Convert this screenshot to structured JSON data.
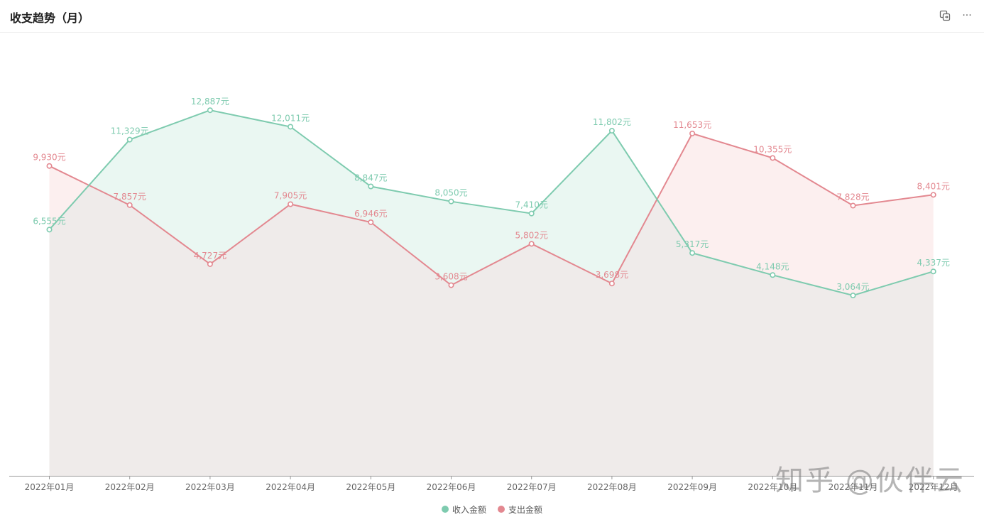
{
  "header": {
    "title": "收支趋势（月）",
    "more_label": "···"
  },
  "watermark": "知乎 @伙伴云",
  "colors": {
    "income": "#7ecbaf",
    "expense": "#e38890",
    "income_fill": "#eaf7f2",
    "expense_fill": "#fcefef",
    "overlap_fill": "#efebea",
    "axis": "#999999",
    "tick_text": "#666666"
  },
  "chart_data": {
    "type": "area",
    "x": [
      "2022年01月",
      "2022年02月",
      "2022年03月",
      "2022年04月",
      "2022年05月",
      "2022年06月",
      "2022年07月",
      "2022年08月",
      "2022年09月",
      "2022年10月",
      "2022年11月",
      "2022年12月"
    ],
    "series": [
      {
        "name": "收入金额",
        "values": [
          6555,
          11329,
          12887,
          12011,
          8847,
          8050,
          7410,
          11802,
          5317,
          4148,
          3064,
          4337
        ]
      },
      {
        "name": "支出金额",
        "values": [
          9930,
          7857,
          4727,
          7905,
          6946,
          3608,
          5802,
          3698,
          11653,
          10355,
          7828,
          8401
        ]
      }
    ],
    "value_suffix": "元",
    "ylim": [
      -6500,
      17000
    ],
    "grid": false,
    "legend_position": "bottom"
  }
}
